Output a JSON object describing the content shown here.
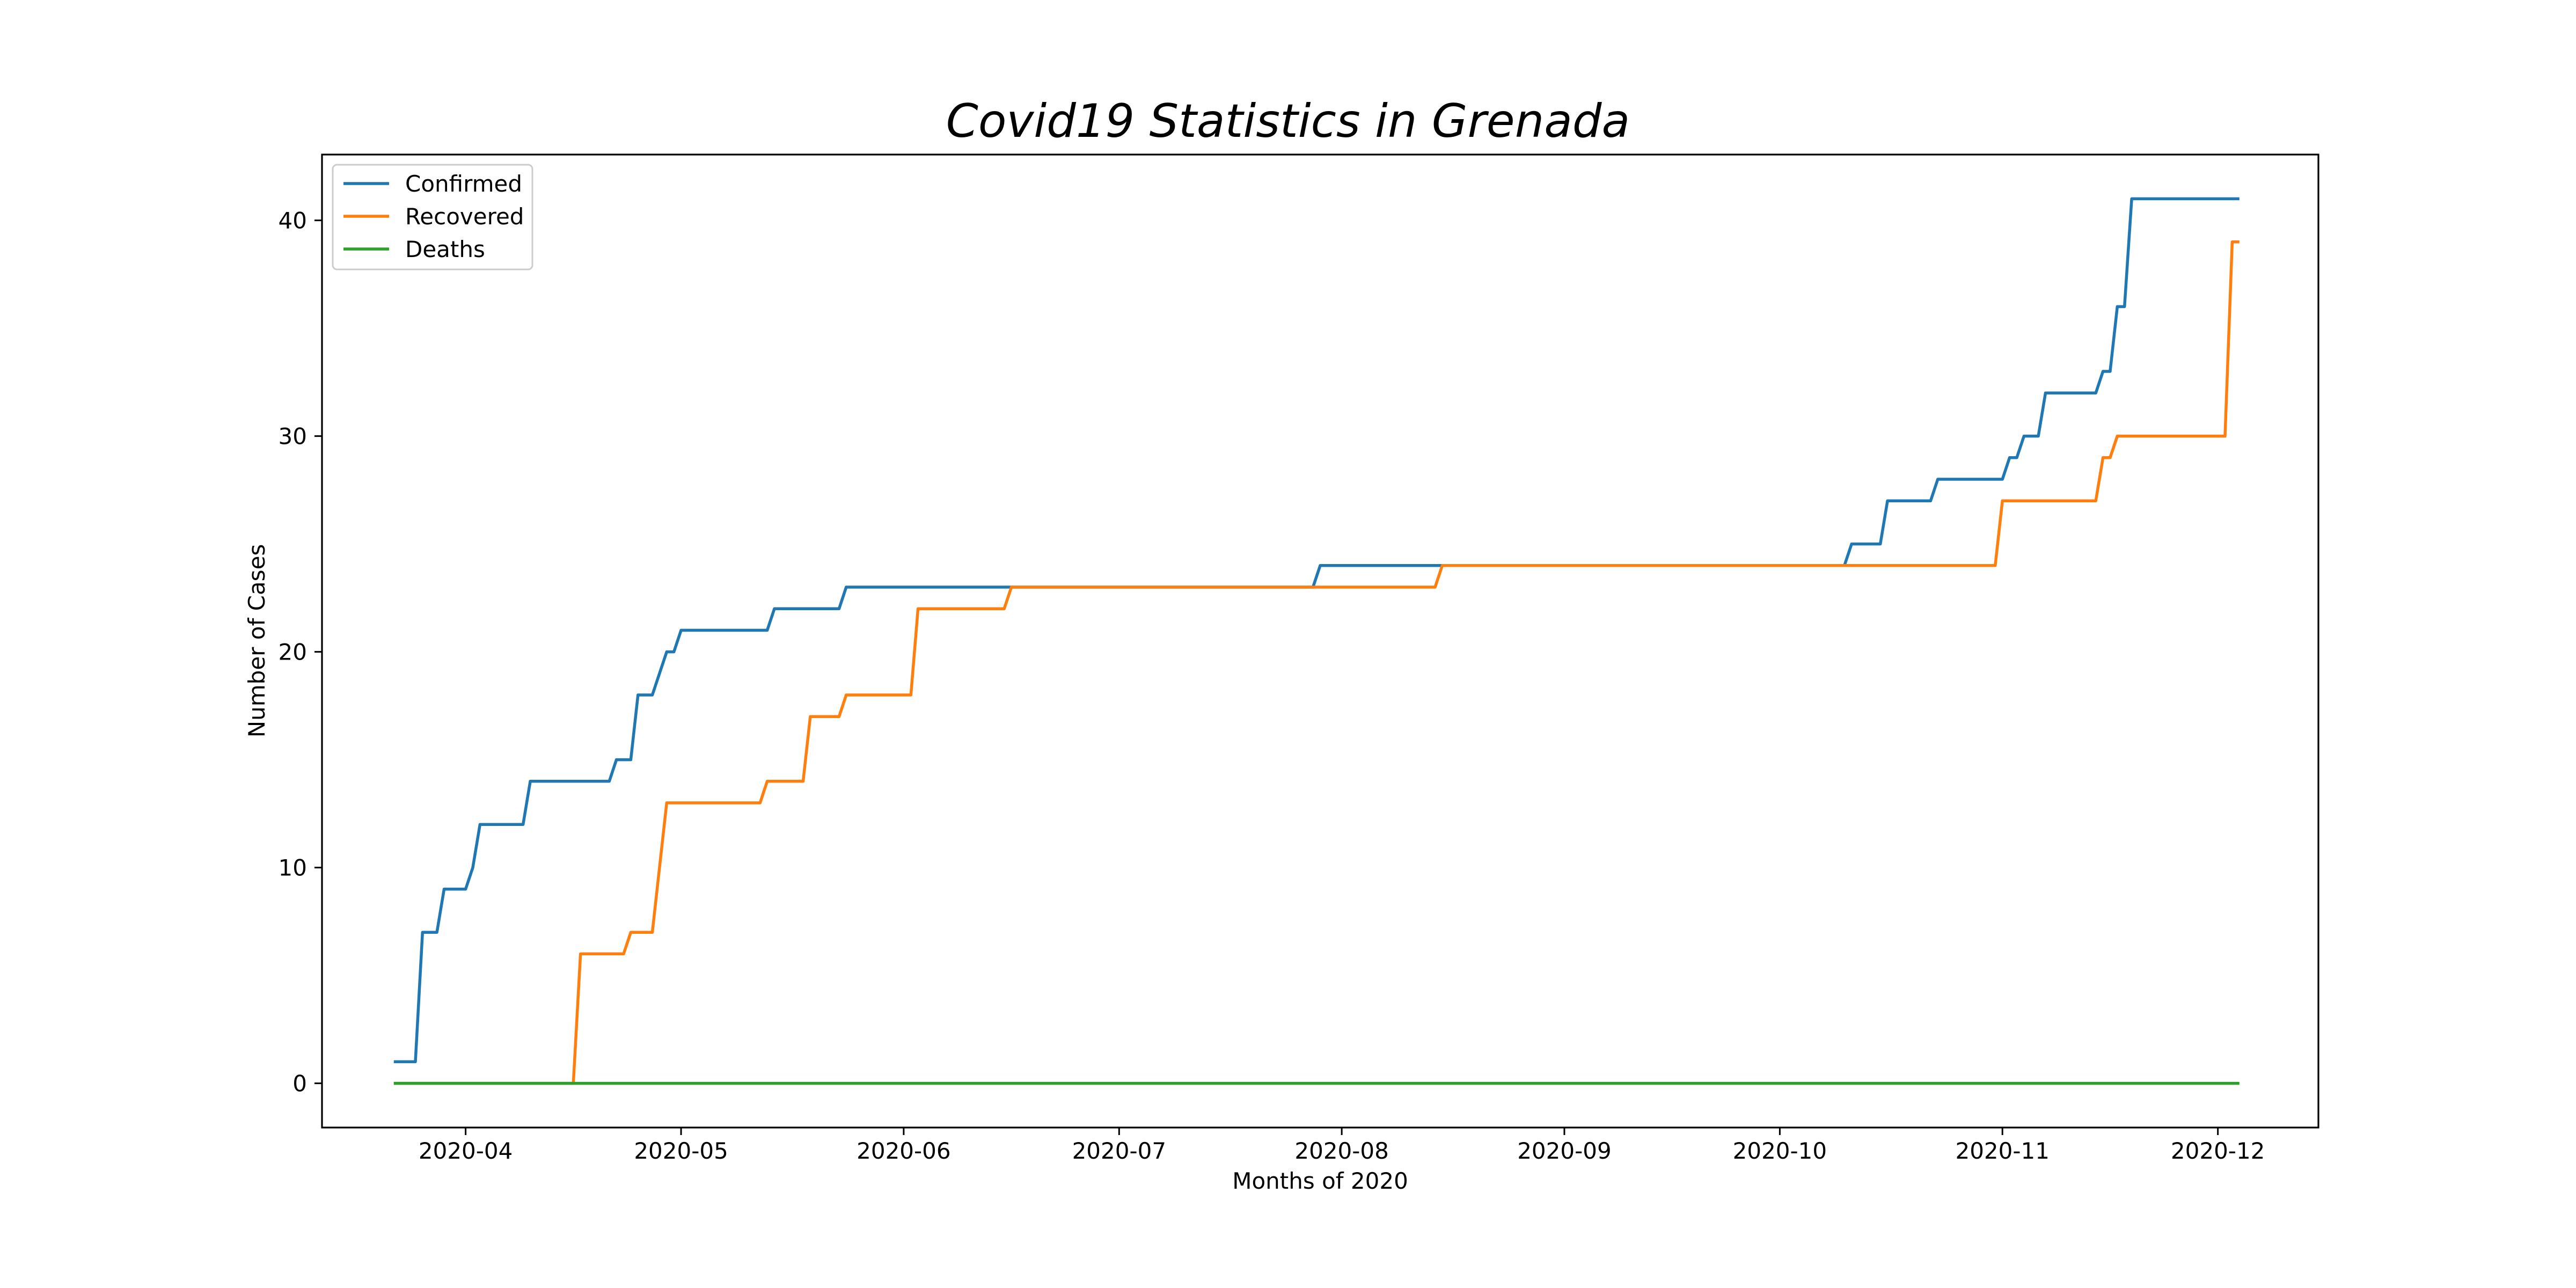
{
  "chart_data": {
    "type": "line",
    "title": "Covid19 Statistics in Grenada",
    "xlabel": "Months of 2020",
    "ylabel": "Number of Cases",
    "xlim": [
      "2020-03-12",
      "2020-12-15"
    ],
    "ylim": [
      -2.05,
      43.05
    ],
    "xticks": [
      {
        "date": "2020-04-01",
        "label": "2020-04"
      },
      {
        "date": "2020-05-01",
        "label": "2020-05"
      },
      {
        "date": "2020-06-01",
        "label": "2020-06"
      },
      {
        "date": "2020-07-01",
        "label": "2020-07"
      },
      {
        "date": "2020-08-01",
        "label": "2020-08"
      },
      {
        "date": "2020-09-01",
        "label": "2020-09"
      },
      {
        "date": "2020-10-01",
        "label": "2020-10"
      },
      {
        "date": "2020-11-01",
        "label": "2020-11"
      },
      {
        "date": "2020-12-01",
        "label": "2020-12"
      }
    ],
    "yticks": [
      0,
      10,
      20,
      30,
      40
    ],
    "grid": false,
    "legend_position": "top-left",
    "series": [
      {
        "name": "Confirmed",
        "color": "#1f77b4",
        "points": [
          [
            "2020-03-22",
            1
          ],
          [
            "2020-03-25",
            1
          ],
          [
            "2020-03-26",
            7
          ],
          [
            "2020-03-28",
            7
          ],
          [
            "2020-03-29",
            9
          ],
          [
            "2020-04-01",
            9
          ],
          [
            "2020-04-02",
            10
          ],
          [
            "2020-04-03",
            12
          ],
          [
            "2020-04-09",
            12
          ],
          [
            "2020-04-10",
            14
          ],
          [
            "2020-04-21",
            14
          ],
          [
            "2020-04-22",
            15
          ],
          [
            "2020-04-24",
            15
          ],
          [
            "2020-04-25",
            18
          ],
          [
            "2020-04-27",
            18
          ],
          [
            "2020-04-29",
            20
          ],
          [
            "2020-04-30",
            20
          ],
          [
            "2020-05-01",
            21
          ],
          [
            "2020-05-13",
            21
          ],
          [
            "2020-05-14",
            22
          ],
          [
            "2020-05-23",
            22
          ],
          [
            "2020-05-24",
            23
          ],
          [
            "2020-07-28",
            23
          ],
          [
            "2020-07-29",
            24
          ],
          [
            "2020-10-10",
            24
          ],
          [
            "2020-10-11",
            25
          ],
          [
            "2020-10-15",
            25
          ],
          [
            "2020-10-16",
            27
          ],
          [
            "2020-10-22",
            27
          ],
          [
            "2020-10-23",
            28
          ],
          [
            "2020-11-01",
            28
          ],
          [
            "2020-11-02",
            29
          ],
          [
            "2020-11-03",
            29
          ],
          [
            "2020-11-04",
            30
          ],
          [
            "2020-11-06",
            30
          ],
          [
            "2020-11-07",
            32
          ],
          [
            "2020-11-14",
            32
          ],
          [
            "2020-11-15",
            33
          ],
          [
            "2020-11-16",
            33
          ],
          [
            "2020-11-17",
            36
          ],
          [
            "2020-11-18",
            36
          ],
          [
            "2020-11-19",
            41
          ],
          [
            "2020-12-04",
            41
          ]
        ]
      },
      {
        "name": "Recovered",
        "color": "#ff7f0e",
        "points": [
          [
            "2020-03-22",
            0
          ],
          [
            "2020-04-16",
            0
          ],
          [
            "2020-04-17",
            6
          ],
          [
            "2020-04-23",
            6
          ],
          [
            "2020-04-24",
            7
          ],
          [
            "2020-04-27",
            7
          ],
          [
            "2020-04-29",
            13
          ],
          [
            "2020-05-12",
            13
          ],
          [
            "2020-05-13",
            14
          ],
          [
            "2020-05-18",
            14
          ],
          [
            "2020-05-19",
            17
          ],
          [
            "2020-05-23",
            17
          ],
          [
            "2020-05-24",
            18
          ],
          [
            "2020-06-02",
            18
          ],
          [
            "2020-06-03",
            22
          ],
          [
            "2020-06-15",
            22
          ],
          [
            "2020-06-16",
            23
          ],
          [
            "2020-08-14",
            23
          ],
          [
            "2020-08-15",
            24
          ],
          [
            "2020-10-31",
            24
          ],
          [
            "2020-11-01",
            27
          ],
          [
            "2020-11-14",
            27
          ],
          [
            "2020-11-15",
            29
          ],
          [
            "2020-11-16",
            29
          ],
          [
            "2020-11-17",
            30
          ],
          [
            "2020-12-02",
            30
          ],
          [
            "2020-12-03",
            39
          ],
          [
            "2020-12-04",
            39
          ]
        ]
      },
      {
        "name": "Deaths",
        "color": "#2ca02c",
        "points": [
          [
            "2020-03-22",
            0
          ],
          [
            "2020-12-04",
            0
          ]
        ]
      }
    ]
  }
}
